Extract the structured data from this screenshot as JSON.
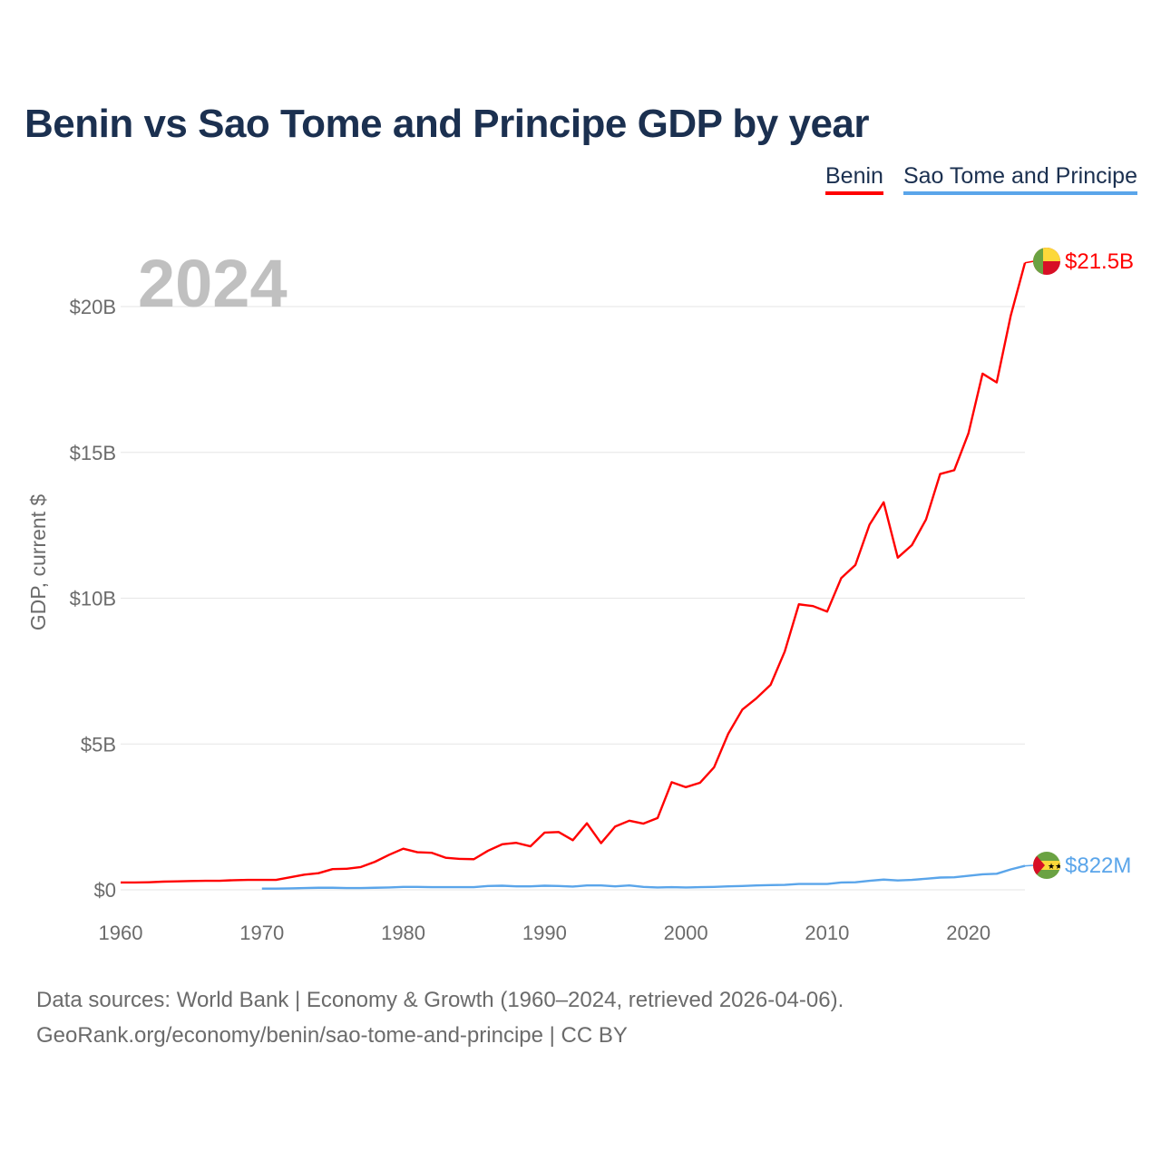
{
  "chart_data": {
    "type": "line",
    "title": "Benin vs Sao Tome and Principe GDP by year",
    "ylabel": "GDP, current $",
    "xlabel": "",
    "year_watermark": "2024",
    "xlim": [
      1960,
      2024
    ],
    "ylim": [
      0,
      22
    ],
    "x_ticks": [
      1960,
      1970,
      1980,
      1990,
      2000,
      2010,
      2020
    ],
    "x_tick_labels": [
      "1960",
      "1970",
      "1980",
      "1990",
      "2000",
      "2010",
      "2020"
    ],
    "y_ticks": [
      0,
      5,
      10,
      15,
      20
    ],
    "y_tick_labels": [
      "$0",
      "$5B",
      "$10B",
      "$15B",
      "$20B"
    ],
    "grid": true,
    "legend_position": "top-right",
    "series": [
      {
        "name": "Benin",
        "color": "#ff0000",
        "end_label": "$21.5B",
        "x_start": 1960,
        "values": [
          0.25,
          0.25,
          0.26,
          0.28,
          0.29,
          0.3,
          0.31,
          0.31,
          0.33,
          0.34,
          0.34,
          0.34,
          0.43,
          0.52,
          0.57,
          0.71,
          0.72,
          0.78,
          0.96,
          1.2,
          1.41,
          1.29,
          1.27,
          1.1,
          1.06,
          1.05,
          1.34,
          1.56,
          1.61,
          1.49,
          1.96,
          1.98,
          1.7,
          2.28,
          1.6,
          2.17,
          2.37,
          2.27,
          2.46,
          3.69,
          3.52,
          3.67,
          4.2,
          5.35,
          6.18,
          6.57,
          7.03,
          8.17,
          9.79,
          9.73,
          9.54,
          10.69,
          11.14,
          12.52,
          13.29,
          11.39,
          11.82,
          12.7,
          14.26,
          14.39,
          15.65,
          17.7,
          17.4,
          19.7,
          21.5
        ]
      },
      {
        "name": "Sao Tome and Principe",
        "color": "#5aa5ea",
        "end_label": "$822M",
        "x_start": 1970,
        "values": [
          0.04,
          0.04,
          0.05,
          0.06,
          0.07,
          0.07,
          0.06,
          0.06,
          0.07,
          0.08,
          0.1,
          0.1,
          0.09,
          0.09,
          0.09,
          0.09,
          0.13,
          0.14,
          0.12,
          0.12,
          0.14,
          0.13,
          0.11,
          0.15,
          0.15,
          0.12,
          0.15,
          0.1,
          0.08,
          0.09,
          0.08,
          0.09,
          0.1,
          0.12,
          0.13,
          0.15,
          0.16,
          0.17,
          0.2,
          0.2,
          0.2,
          0.25,
          0.26,
          0.31,
          0.35,
          0.32,
          0.34,
          0.38,
          0.42,
          0.43,
          0.48,
          0.53,
          0.55,
          0.7,
          0.822
        ]
      }
    ]
  },
  "footer": {
    "line1": "Data sources: World Bank | Economy & Growth (1960–2024, retrieved 2026-04-06).",
    "line2": "GeoRank.org/economy/benin/sao-tome-and-principe | CC BY"
  }
}
